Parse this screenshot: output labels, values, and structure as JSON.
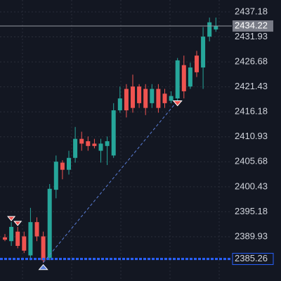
{
  "chart_data": {
    "type": "candlestick",
    "up_color": "#26a69a",
    "down_color": "#ef5350",
    "open": [
      2389.8,
      2389,
      2391,
      2390,
      2386,
      2393,
      2390,
      2385.5,
      2399.8,
      2405.5,
      2404,
      2406.5,
      2410.5,
      2410,
      2409.5,
      2408,
      2409,
      2407,
      2416.5,
      2421,
      2421.5,
      2421.5,
      2421,
      2418,
      2421,
      2420,
      2418.5,
      2419,
      2426,
      2421.5,
      2428,
      2425.5,
      2432,
      2433.5
    ],
    "high": [
      2390.5,
      2393,
      2392,
      2391,
      2396,
      2394,
      2391,
      2401,
      2407,
      2406,
      2408,
      2413,
      2412,
      2411,
      2410.5,
      2410.5,
      2411,
      2418,
      2421.5,
      2422,
      2424,
      2422,
      2422,
      2422,
      2422,
      2421,
      2420.5,
      2427.5,
      2428,
      2426.5,
      2429,
      2434,
      2436,
      2436
    ],
    "low": [
      2389,
      2388,
      2387.5,
      2386.5,
      2385,
      2389,
      2384.5,
      2385,
      2398,
      2402,
      2403,
      2405.5,
      2408,
      2408,
      2408.5,
      2405.5,
      2405,
      2406.5,
      2416,
      2415,
      2416,
      2417,
      2415.5,
      2417,
      2416,
      2417,
      2418,
      2418.5,
      2419,
      2421,
      2423.5,
      2421,
      2431,
      2433
    ],
    "close": [
      2389.3,
      2392,
      2388,
      2387,
      2393,
      2390,
      2385,
      2400,
      2405.7,
      2404,
      2406.5,
      2410.5,
      2409.5,
      2409,
      2409,
      2409.5,
      2410,
      2416.5,
      2419,
      2416.5,
      2417,
      2418,
      2417,
      2421,
      2417,
      2418,
      2419.5,
      2427,
      2420.5,
      2425.5,
      2424.5,
      2432,
      2435,
      2434.22
    ],
    "ylim": [
      2380.62,
      2439.69
    ],
    "yticks": [
      2437.18,
      2431.93,
      2426.68,
      2421.43,
      2416.18,
      2410.93,
      2405.68,
      2400.43,
      2395.18,
      2389.93
    ],
    "last_price": 2434.22,
    "level_price": 2385.26,
    "grid": true
  }
}
